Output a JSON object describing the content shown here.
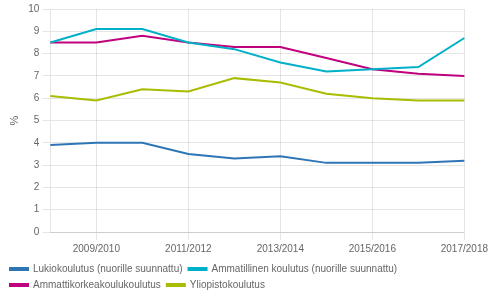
{
  "chart_data": {
    "type": "line",
    "ylabel": "%",
    "categories": [
      null,
      "2009/2010",
      null,
      "2011/2012",
      null,
      "2013/2014",
      null,
      "2015/2016",
      null,
      "2017/2018"
    ],
    "series": [
      {
        "name": "Lukiokoulutus (nuorille suunnattu)",
        "color": "#2E75B6",
        "values": [
          3.9,
          4.0,
          4.0,
          3.5,
          3.3,
          3.4,
          3.1,
          3.1,
          3.1,
          3.2
        ]
      },
      {
        "name": "Ammatillinen koulutus (nuorille suunnattu)",
        "color": "#00B0C8",
        "values": [
          8.5,
          9.1,
          9.1,
          8.5,
          8.2,
          7.6,
          7.2,
          7.3,
          7.4,
          8.7
        ]
      },
      {
        "name": "Ammattikorkeakoulukoulutus",
        "color": "#C0007C",
        "values": [
          8.5,
          8.5,
          8.8,
          8.5,
          8.3,
          8.3,
          7.8,
          7.3,
          7.1,
          7.0
        ]
      },
      {
        "name": "Yliopistokoulutus",
        "color": "#AABC00",
        "values": [
          6.1,
          5.9,
          6.4,
          6.3,
          6.9,
          6.7,
          6.2,
          6.0,
          5.9,
          5.9
        ]
      }
    ],
    "ylim": [
      0,
      10
    ],
    "yticks": [
      0,
      1,
      2,
      3,
      4,
      5,
      6,
      7,
      8,
      9,
      10
    ],
    "grid": true,
    "legend": "bottom"
  }
}
